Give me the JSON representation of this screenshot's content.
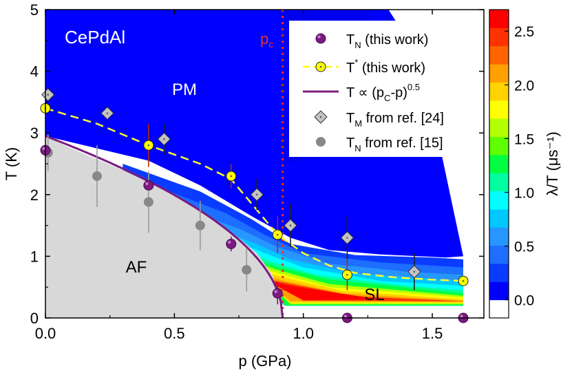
{
  "chart_data": {
    "type": "scatter",
    "title": "",
    "sample_label": "CePdAl",
    "xlabel": "p (GPa)",
    "ylabel": "T (K)",
    "xlim": [
      0,
      1.7
    ],
    "ylim": [
      0,
      5
    ],
    "x_ticks": [
      "0.0",
      "0.5",
      "1.0",
      "1.5"
    ],
    "x_tick_values": [
      0.0,
      0.5,
      1.0,
      1.5
    ],
    "y_ticks": [
      "0",
      "1",
      "2",
      "3",
      "4",
      "5"
    ],
    "y_tick_values": [
      0,
      1,
      2,
      3,
      4,
      5
    ],
    "pc_label": "p",
    "pc_sub": "c",
    "pc_value": 0.92,
    "region_labels": {
      "pm": "PM",
      "af": "AF",
      "sl": "SL"
    },
    "colorbar": {
      "label": "λ/T (μs⁻¹)",
      "min": 0.0,
      "max": 2.7,
      "ticks": [
        "0.0",
        "0.5",
        "1.0",
        "1.5",
        "2.0",
        "2.5"
      ],
      "tick_values": [
        0.0,
        0.5,
        1.0,
        1.5,
        2.0,
        2.5
      ],
      "colors": [
        "#ffffff",
        "#0000ff",
        "#0a3cff",
        "#1e6eff",
        "#2896ff",
        "#00c8ff",
        "#00ffff",
        "#00ffa0",
        "#00ff40",
        "#60ff00",
        "#b4ff00",
        "#ffff00",
        "#ffd200",
        "#ffa000",
        "#ff6400",
        "#ff3200",
        "#ff0000"
      ]
    },
    "legend": [
      {
        "key": "tn",
        "text": "T",
        "sub": "N",
        "rest": " (this work)"
      },
      {
        "key": "tstar",
        "text": "T",
        "sup": "*",
        "rest": " (this work)"
      },
      {
        "key": "fit",
        "text": "T ∝ (p",
        "sub": "C",
        "rest": "-p)",
        "sup2": "0.5"
      },
      {
        "key": "tm",
        "text": "T",
        "sub": "M",
        "rest": " from ref. [24]"
      },
      {
        "key": "tnref",
        "text": "T",
        "sub": "N",
        "rest": " from ref. [15]"
      }
    ],
    "series": [
      {
        "name": "TN (this work)",
        "color": "#7b1a80",
        "x": [
          0.0,
          0.4,
          0.72,
          0.9,
          1.17,
          1.62
        ],
        "y": [
          2.72,
          2.15,
          1.2,
          0.4,
          0.0,
          0.0
        ],
        "err": [
          0,
          0,
          0.12,
          0.18,
          0,
          0
        ]
      },
      {
        "name": "T* (this work)",
        "color": "#ffff00",
        "x": [
          0.0,
          0.4,
          0.72,
          0.9,
          1.17,
          1.62
        ],
        "y": [
          3.4,
          2.8,
          2.3,
          1.35,
          0.7,
          0.6
        ],
        "err": [
          0,
          0.35,
          0.2,
          0.3,
          0.25,
          0
        ]
      },
      {
        "name": "TM from ref. [24]",
        "color": "#c0c0c0",
        "x": [
          0.01,
          0.24,
          0.46,
          0.82,
          0.95,
          1.17,
          1.43
        ],
        "y": [
          3.62,
          3.32,
          2.9,
          2.0,
          1.5,
          1.3,
          0.75
        ],
        "err": [
          0,
          0,
          0.25,
          0.25,
          0.35,
          0.35,
          0.3
        ]
      },
      {
        "name": "TN from ref. [15]",
        "color": "#888888",
        "x": [
          0.01,
          0.2,
          0.4,
          0.6,
          0.78
        ],
        "y": [
          2.68,
          2.3,
          1.88,
          1.5,
          0.78
        ],
        "err": [
          0.3,
          0.5,
          0.5,
          0.4,
          0.35
        ]
      }
    ],
    "tstar_dashed_curve": {
      "x": [
        0.0,
        0.2,
        0.4,
        0.6,
        0.72,
        0.8,
        0.9,
        1.0,
        1.1,
        1.2,
        1.35,
        1.5,
        1.62
      ],
      "y": [
        3.4,
        3.15,
        2.8,
        2.5,
        2.25,
        1.85,
        1.35,
        1.05,
        0.85,
        0.73,
        0.66,
        0.62,
        0.6
      ]
    },
    "fit_curve": {
      "pc": 0.92,
      "amplitude": 2.95
    }
  }
}
